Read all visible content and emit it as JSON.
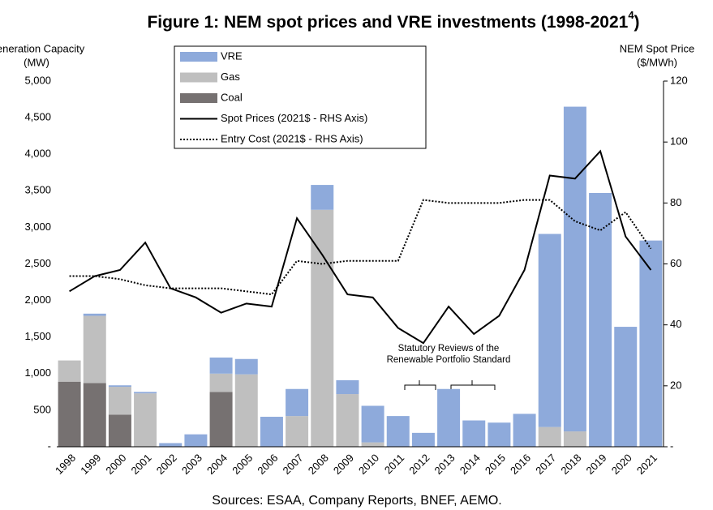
{
  "chart_data": {
    "type": "bar",
    "title": "Figure 1:  NEM spot prices and VRE investments (1998-2021",
    "title_superscript": "4",
    "title_suffix": ")",
    "y_label": [
      "Generation Capacity",
      "(MW)"
    ],
    "y2_label": [
      "NEM Spot Price",
      "($/MWh)"
    ],
    "annotation": [
      "Statutory Reviews of the",
      "Renewable Portfolio Standard"
    ],
    "source": "Sources: ESAA, Company Reports, BNEF, AEMO.",
    "categories": [
      "1998",
      "1999",
      "2000",
      "2001",
      "2002",
      "2003",
      "2004",
      "2005",
      "2006",
      "2007",
      "2008",
      "2009",
      "2010",
      "2011",
      "2012",
      "2013",
      "2014",
      "2015",
      "2016",
      "2017",
      "2018",
      "2019",
      "2020",
      "2021"
    ],
    "series": [
      {
        "name": "VRE",
        "type": "bar",
        "color": "#8eaadb",
        "values": [
          0,
          30,
          20,
          20,
          50,
          170,
          220,
          210,
          410,
          370,
          340,
          190,
          500,
          420,
          190,
          790,
          360,
          330,
          450,
          2640,
          4440,
          3470,
          1640,
          2820
        ]
      },
      {
        "name": "Gas",
        "type": "bar",
        "color": "#bfbfbf",
        "values": [
          290,
          920,
          380,
          730,
          0,
          0,
          250,
          990,
          0,
          420,
          3240,
          720,
          60,
          0,
          0,
          0,
          0,
          0,
          0,
          270,
          210,
          0,
          0,
          0
        ]
      },
      {
        "name": "Coal",
        "type": "bar",
        "color": "#767171",
        "values": [
          890,
          870,
          440,
          0,
          0,
          0,
          750,
          0,
          0,
          0,
          0,
          0,
          0,
          0,
          0,
          0,
          0,
          0,
          0,
          0,
          0,
          0,
          0,
          0
        ]
      },
      {
        "name": "Spot Prices (2021$ - RHS Axis)",
        "type": "line",
        "axis": "y2",
        "color": "#000000",
        "dash": "solid",
        "values": [
          51,
          56,
          58,
          67,
          52,
          49,
          44,
          47,
          46,
          75,
          63,
          50,
          49,
          39,
          34,
          46,
          37,
          43,
          58,
          89,
          88,
          97,
          69,
          58
        ]
      },
      {
        "name": "Entry Cost (2021$ - RHS Axis)",
        "type": "line",
        "axis": "y2",
        "color": "#000000",
        "dash": "dotted",
        "values": [
          56,
          56,
          55,
          53,
          52,
          52,
          52,
          51,
          50,
          61,
          60,
          61,
          61,
          61,
          81,
          80,
          80,
          80,
          81,
          81,
          74,
          71,
          77,
          65
        ]
      }
    ],
    "ylim": [
      0,
      5000
    ],
    "yticks": [
      {
        "value": 0,
        "label": "-"
      },
      500,
      {
        "value": 1000,
        "label": "1,000"
      },
      {
        "value": 1500,
        "label": "1,500"
      },
      {
        "value": 2000,
        "label": "2,000"
      },
      {
        "value": 2500,
        "label": "2,500"
      },
      {
        "value": 3000,
        "label": "3,000"
      },
      {
        "value": 3500,
        "label": "3,500"
      },
      {
        "value": 4000,
        "label": "4,000"
      },
      {
        "value": 4500,
        "label": "4,500"
      },
      {
        "value": 5000,
        "label": "5,000"
      }
    ],
    "y2lim": [
      0,
      120
    ],
    "y2ticks": [
      {
        "value": 0,
        "label": "-"
      },
      20,
      40,
      60,
      80,
      100,
      120
    ]
  }
}
